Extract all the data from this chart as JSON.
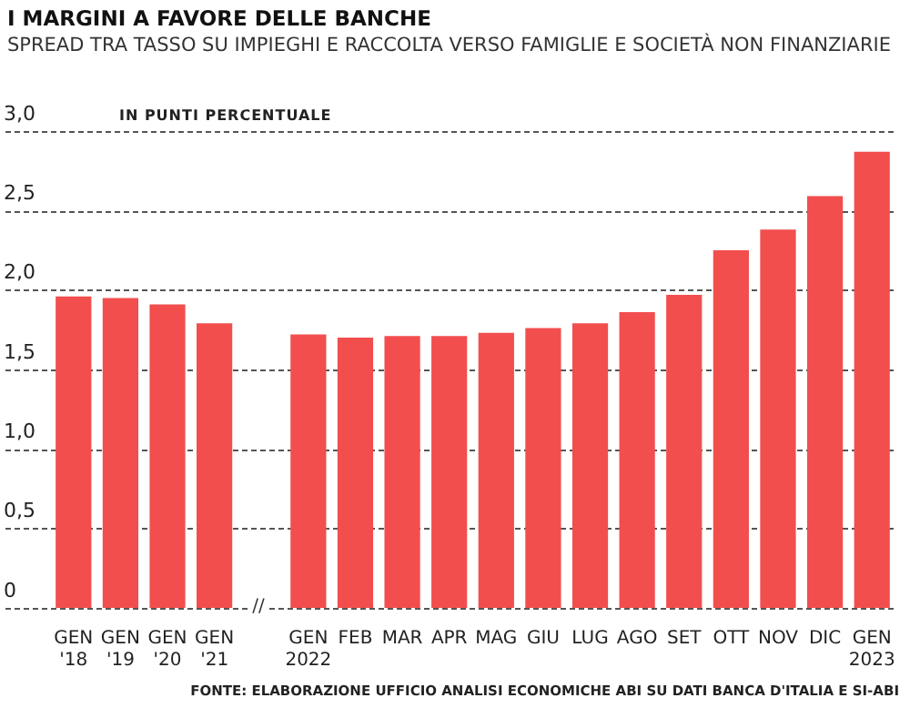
{
  "chart_data": {
    "type": "bar",
    "title": "I MARGINI A FAVORE DELLE BANCHE",
    "subtitle": "SPREAD TRA TASSO SU IMPIEGHI E RACCOLTA VERSO FAMIGLIE E SOCIETÀ NON FINANZIARIE",
    "ylabel": "IN PUNTI PERCENTUALE",
    "annotations": [
      "//",
      "FONTE: ELABORAZIONE UFFICIO ANALISI ECONOMICHE ABI SU DATI BANCA D'ITALIA E SI-ABI"
    ],
    "categories": [
      "GEN\n'18",
      "GEN\n'19",
      "GEN\n'20",
      "GEN\n'21",
      null,
      "GEN\n2022",
      "FEB",
      "MAR",
      "APR",
      "MAG",
      "GIU",
      "LUG",
      "AGO",
      "SET",
      "OTT",
      "NOV",
      "DIC",
      "GEN\n2023"
    ],
    "values": [
      1.96,
      1.95,
      1.91,
      1.79,
      null,
      1.72,
      1.7,
      1.71,
      1.71,
      1.73,
      1.76,
      1.79,
      1.86,
      1.97,
      2.25,
      2.38,
      2.59,
      2.87
    ],
    "color": "#f24e4e",
    "ylim": [
      0,
      3
    ],
    "yticks": [
      0,
      {
        "value": 0.5,
        "label": "0,5"
      },
      {
        "value": 1,
        "label": "1,0"
      },
      {
        "value": 1.5,
        "label": "1,5"
      },
      {
        "value": 2,
        "label": "2,0"
      },
      {
        "value": 2.5,
        "label": "2,5"
      },
      {
        "value": 3,
        "label": "3,0"
      }
    ],
    "grid": "y"
  }
}
